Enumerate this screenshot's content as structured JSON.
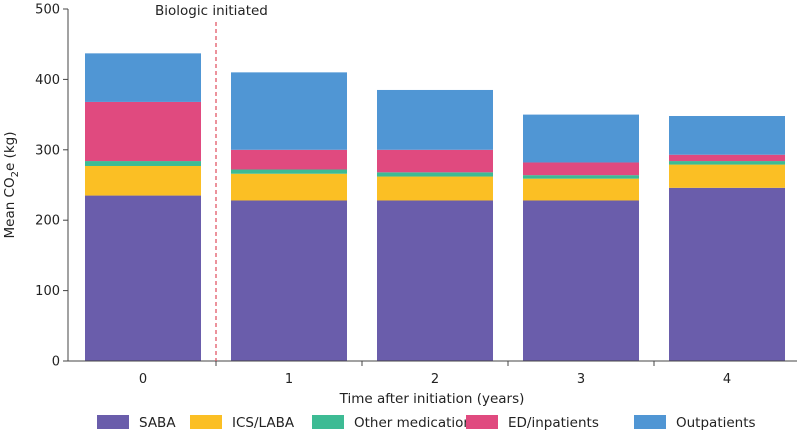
{
  "chart_data": {
    "type": "bar",
    "stacked": true,
    "categories": [
      "0",
      "1",
      "2",
      "3",
      "4"
    ],
    "series": [
      {
        "name": "SABA",
        "color": "#6a5dab",
        "values": [
          235,
          228,
          228,
          228,
          246
        ]
      },
      {
        "name": "ICS/LABA",
        "color": "#fbbf24",
        "values": [
          42,
          38,
          34,
          31,
          33
        ]
      },
      {
        "name": "Other medications",
        "color": "#3dbb94",
        "values": [
          7,
          6,
          6,
          5,
          5
        ]
      },
      {
        "name": "ED/inpatients",
        "color": "#e04a7f",
        "values": [
          84,
          28,
          32,
          18,
          9
        ]
      },
      {
        "name": "Outpatients",
        "color": "#5096d4",
        "values": [
          69,
          110,
          85,
          68,
          55
        ]
      }
    ],
    "xlabel": "Time after initiation (years)",
    "ylabel": {
      "prefix": "Mean CO",
      "subscript": "2",
      "suffix": "e (kg)"
    },
    "ylim": [
      0,
      500
    ],
    "yticks": [
      "0",
      "100",
      "200",
      "300",
      "400",
      "500"
    ],
    "annotation": {
      "text": "Biologic initiated",
      "color": "#e04a5a"
    },
    "legend_position": "bottom"
  }
}
